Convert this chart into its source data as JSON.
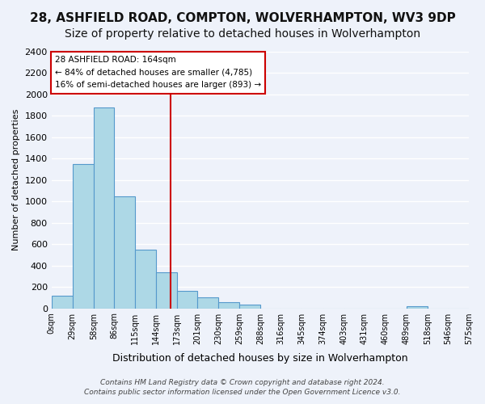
{
  "title": "28, ASHFIELD ROAD, COMPTON, WOLVERHAMPTON, WV3 9DP",
  "subtitle": "Size of property relative to detached houses in Wolverhampton",
  "xlabel": "Distribution of detached houses by size in Wolverhampton",
  "ylabel": "Number of detached properties",
  "bar_edges": [
    0,
    29,
    58,
    86,
    115,
    144,
    173,
    201,
    230,
    259,
    288,
    316,
    345,
    374,
    403,
    431,
    460,
    489,
    518,
    546,
    575
  ],
  "bar_heights": [
    120,
    1350,
    1880,
    1050,
    550,
    335,
    160,
    105,
    60,
    35,
    0,
    0,
    0,
    0,
    0,
    0,
    0,
    20,
    0,
    0
  ],
  "bar_color": "#add8e6",
  "bar_edge_color": "#5599cc",
  "vline_x": 164,
  "vline_color": "#cc0000",
  "ylim": [
    0,
    2400
  ],
  "yticks": [
    0,
    200,
    400,
    600,
    800,
    1000,
    1200,
    1400,
    1600,
    1800,
    2000,
    2200,
    2400
  ],
  "xtick_labels": [
    "0sqm",
    "29sqm",
    "58sqm",
    "86sqm",
    "115sqm",
    "144sqm",
    "173sqm",
    "201sqm",
    "230sqm",
    "259sqm",
    "288sqm",
    "316sqm",
    "345sqm",
    "374sqm",
    "403sqm",
    "431sqm",
    "460sqm",
    "489sqm",
    "518sqm",
    "546sqm",
    "575sqm"
  ],
  "annotation_title": "28 ASHFIELD ROAD: 164sqm",
  "annotation_line1": "← 84% of detached houses are smaller (4,785)",
  "annotation_line2": "16% of semi-detached houses are larger (893) →",
  "annotation_box_color": "#ffffff",
  "annotation_box_edge": "#cc0000",
  "footer_line1": "Contains HM Land Registry data © Crown copyright and database right 2024.",
  "footer_line2": "Contains public sector information licensed under the Open Government Licence v3.0.",
  "bg_color": "#eef2fa",
  "grid_color": "#ffffff",
  "title_fontsize": 11,
  "subtitle_fontsize": 10
}
